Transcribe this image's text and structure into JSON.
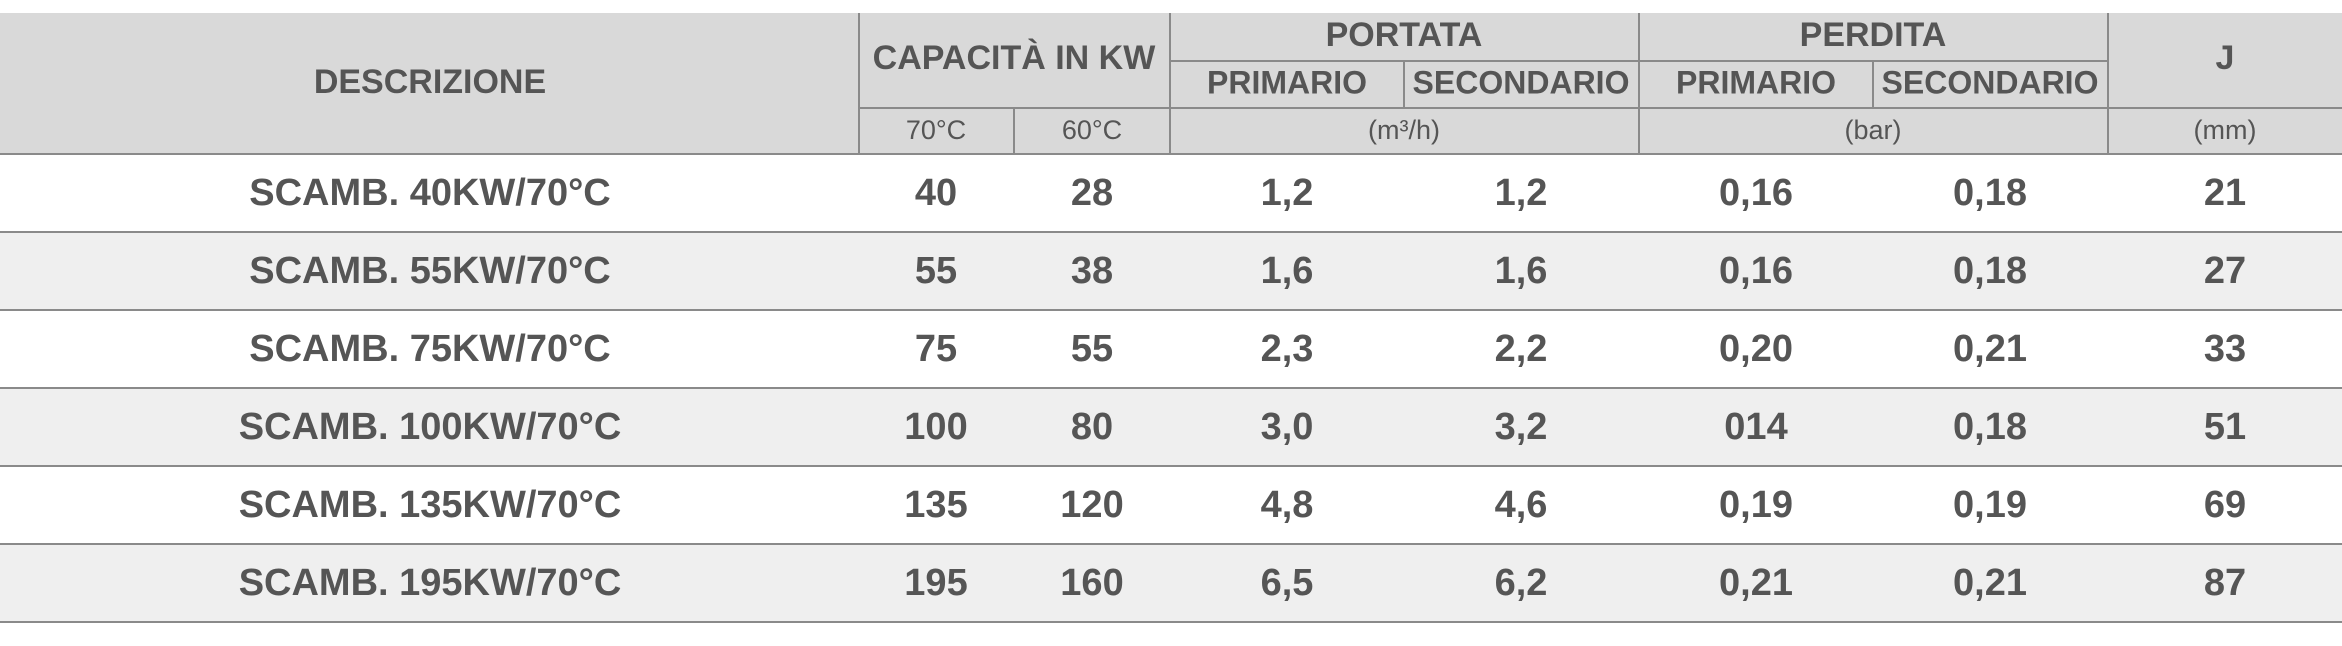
{
  "header": {
    "descrizione": "DESCRIZIONE",
    "capacita": "CAPACITÀ IN KW",
    "portata": "PORTATA",
    "perdita": "PERDITA",
    "j": "J",
    "sub": [
      "PRIMARIO",
      "SECONDARIO",
      "PRIMARIO",
      "SECONDARIO"
    ],
    "units": [
      "70°C",
      "60°C",
      "(m³/h)",
      "(bar)",
      "(mm)"
    ]
  },
  "table": {
    "rows": [
      [
        "SCAMB. 40KW/70°C",
        "40",
        "28",
        "1,2",
        "1,2",
        "0,16",
        "0,18",
        "21"
      ],
      [
        "SCAMB. 55KW/70°C",
        "55",
        "38",
        "1,6",
        "1,6",
        "0,16",
        "0,18",
        "27"
      ],
      [
        "SCAMB. 75KW/70°C",
        "75",
        "55",
        "2,3",
        "2,2",
        "0,20",
        "0,21",
        "33"
      ],
      [
        "SCAMB. 100KW/70°C",
        "100",
        "80",
        "3,0",
        "3,2",
        "014",
        "0,18",
        "51"
      ],
      [
        "SCAMB. 135KW/70°C",
        "135",
        "120",
        "4,8",
        "4,6",
        "0,19",
        "0,19",
        "69"
      ],
      [
        "SCAMB. 195KW/70°C",
        "195",
        "160",
        "6,5",
        "6,2",
        "0,21",
        "0,21",
        "87"
      ]
    ]
  }
}
